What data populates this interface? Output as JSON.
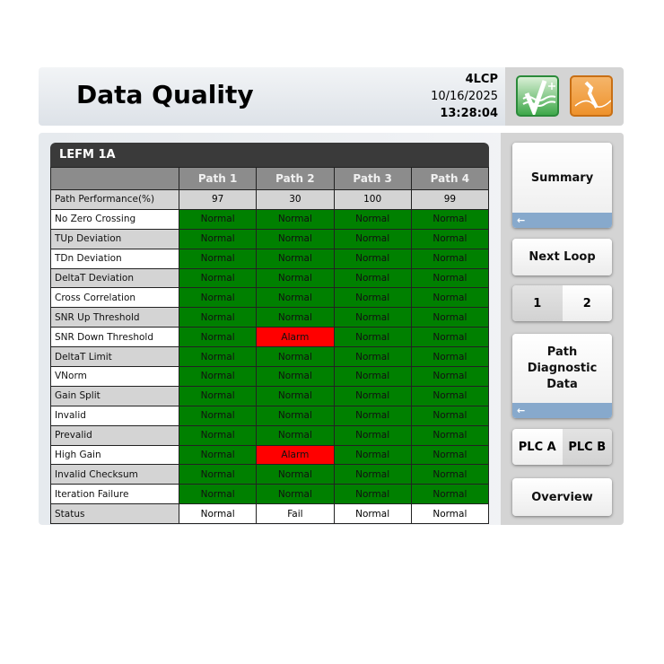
{
  "header": {
    "title": "Data Quality",
    "unit": "4LCP",
    "date": "10/16/2025",
    "time": "13:28:04"
  },
  "icons": {
    "quality": "checkmark-wave-icon",
    "maintenance": "wrench-icon",
    "quality_color": "#3fa84a",
    "maintenance_color": "#ee922c"
  },
  "panel": {
    "title": "LEFM 1A"
  },
  "table": {
    "columns": [
      "",
      "Path 1",
      "Path 2",
      "Path 3",
      "Path 4"
    ],
    "performance": {
      "label": "Path Performance(%)",
      "values": [
        "97",
        "30",
        "100",
        "99"
      ]
    },
    "rows": [
      {
        "label": "No Zero Crossing",
        "values": [
          "Normal",
          "Normal",
          "Normal",
          "Normal"
        ]
      },
      {
        "label": "TUp Deviation",
        "values": [
          "Normal",
          "Normal",
          "Normal",
          "Normal"
        ]
      },
      {
        "label": "TDn Deviation",
        "values": [
          "Normal",
          "Normal",
          "Normal",
          "Normal"
        ]
      },
      {
        "label": "DeltaT Deviation",
        "values": [
          "Normal",
          "Normal",
          "Normal",
          "Normal"
        ]
      },
      {
        "label": "Cross Correlation",
        "values": [
          "Normal",
          "Normal",
          "Normal",
          "Normal"
        ]
      },
      {
        "label": "SNR Up Threshold",
        "values": [
          "Normal",
          "Normal",
          "Normal",
          "Normal"
        ]
      },
      {
        "label": "SNR Down Threshold",
        "values": [
          "Normal",
          "Alarm",
          "Normal",
          "Normal"
        ]
      },
      {
        "label": "DeltaT Limit",
        "values": [
          "Normal",
          "Normal",
          "Normal",
          "Normal"
        ]
      },
      {
        "label": "VNorm",
        "values": [
          "Normal",
          "Normal",
          "Normal",
          "Normal"
        ]
      },
      {
        "label": "Gain Split",
        "values": [
          "Normal",
          "Normal",
          "Normal",
          "Normal"
        ]
      },
      {
        "label": "Invalid",
        "values": [
          "Normal",
          "Normal",
          "Normal",
          "Normal"
        ]
      },
      {
        "label": "Prevalid",
        "values": [
          "Normal",
          "Normal",
          "Normal",
          "Normal"
        ]
      },
      {
        "label": "High Gain",
        "values": [
          "Normal",
          "Alarm",
          "Normal",
          "Normal"
        ]
      },
      {
        "label": "Invalid Checksum",
        "values": [
          "Normal",
          "Normal",
          "Normal",
          "Normal"
        ]
      },
      {
        "label": "Iteration Failure",
        "values": [
          "Normal",
          "Normal",
          "Normal",
          "Normal"
        ]
      }
    ],
    "status": {
      "label": "Status",
      "values": [
        "Normal",
        "Fail",
        "Normal",
        "Normal"
      ]
    },
    "colors": {
      "normal": "#008000",
      "alarm": "#ff0000"
    }
  },
  "sidebar": {
    "summary": "Summary",
    "next_loop": "Next Loop",
    "loop1": "1",
    "loop2": "2",
    "path_diag": "Path Diagnostic Data",
    "plc_a": "PLC A",
    "plc_b": "PLC B",
    "overview": "Overview",
    "arrow": "←"
  }
}
